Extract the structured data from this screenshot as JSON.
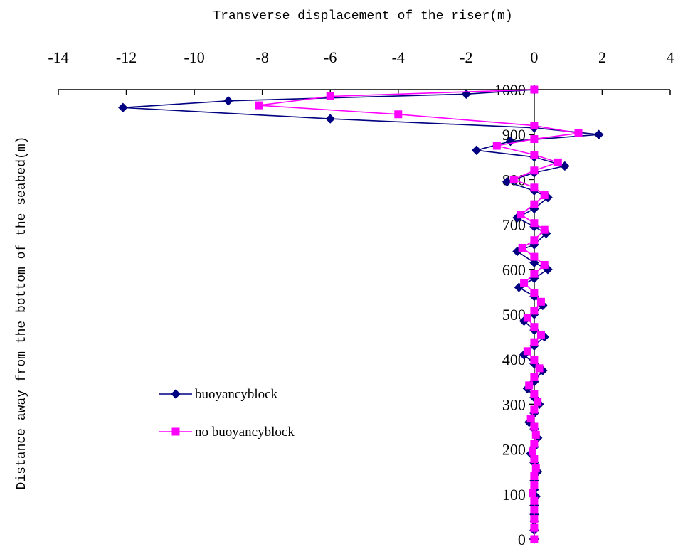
{
  "chart_data": {
    "type": "line",
    "xlabel": "Transverse displacement of the riser(m)",
    "ylabel": "Distance away from the bottom of the seabed(m)",
    "xlim": [
      -14,
      4
    ],
    "ylim": [
      0,
      1000
    ],
    "x_ticks": [
      "-14",
      "-12",
      "-10",
      "-8",
      "-6",
      "-4",
      "-2",
      "0",
      "2",
      "4"
    ],
    "y_ticks": [
      "0",
      "100",
      "200",
      "300",
      "400",
      "500",
      "600",
      "700",
      "800",
      "900",
      "1000"
    ],
    "x_axis_position": "top",
    "grid": false,
    "legend_position": "left-middle",
    "series": [
      {
        "name": "buoyancyblock",
        "color": "#000080",
        "marker": "diamond",
        "points": [
          [
            0,
            1000
          ],
          [
            -2,
            990
          ],
          [
            -9,
            975
          ],
          [
            -12.1,
            960
          ],
          [
            -6,
            935
          ],
          [
            0,
            915
          ],
          [
            1.9,
            900
          ],
          [
            -0.7,
            885
          ],
          [
            -1.7,
            865
          ],
          [
            0,
            850
          ],
          [
            0.9,
            830
          ],
          [
            0,
            815
          ],
          [
            -0.8,
            795
          ],
          [
            0,
            775
          ],
          [
            0.4,
            760
          ],
          [
            0,
            735
          ],
          [
            -0.5,
            715
          ],
          [
            0,
            695
          ],
          [
            0.35,
            680
          ],
          [
            0,
            655
          ],
          [
            -0.5,
            640
          ],
          [
            0,
            615
          ],
          [
            0.4,
            600
          ],
          [
            0,
            580
          ],
          [
            -0.45,
            560
          ],
          [
            0,
            540
          ],
          [
            0.25,
            520
          ],
          [
            0,
            500
          ],
          [
            -0.3,
            485
          ],
          [
            0,
            465
          ],
          [
            0.3,
            450
          ],
          [
            0,
            430
          ],
          [
            -0.3,
            410
          ],
          [
            0,
            390
          ],
          [
            0.25,
            375
          ],
          [
            0,
            350
          ],
          [
            -0.2,
            335
          ],
          [
            0,
            315
          ],
          [
            0.15,
            300
          ],
          [
            0,
            280
          ],
          [
            -0.15,
            260
          ],
          [
            0,
            245
          ],
          [
            0.1,
            225
          ],
          [
            0,
            205
          ],
          [
            -0.1,
            190
          ],
          [
            0,
            170
          ],
          [
            0.1,
            150
          ],
          [
            0,
            130
          ],
          [
            0,
            110
          ],
          [
            0.05,
            95
          ],
          [
            0,
            75
          ],
          [
            0,
            55
          ],
          [
            0,
            40
          ],
          [
            0,
            20
          ],
          [
            0,
            0
          ]
        ]
      },
      {
        "name": "no buoyancyblock",
        "color": "#ff00ff",
        "marker": "square",
        "points": [
          [
            0,
            1000
          ],
          [
            -6,
            985
          ],
          [
            -8.1,
            965
          ],
          [
            -4,
            945
          ],
          [
            0,
            920
          ],
          [
            1.3,
            903
          ],
          [
            0,
            890
          ],
          [
            -1.1,
            875
          ],
          [
            0,
            855
          ],
          [
            0.7,
            838
          ],
          [
            0,
            820
          ],
          [
            -0.6,
            800
          ],
          [
            0,
            782
          ],
          [
            0.3,
            765
          ],
          [
            0,
            745
          ],
          [
            -0.4,
            722
          ],
          [
            0,
            703
          ],
          [
            0.3,
            688
          ],
          [
            0,
            665
          ],
          [
            -0.35,
            648
          ],
          [
            0,
            628
          ],
          [
            0.3,
            610
          ],
          [
            0,
            590
          ],
          [
            -0.3,
            570
          ],
          [
            0,
            548
          ],
          [
            0.2,
            528
          ],
          [
            0,
            508
          ],
          [
            -0.2,
            492
          ],
          [
            0,
            472
          ],
          [
            0.2,
            455
          ],
          [
            0,
            438
          ],
          [
            -0.2,
            418
          ],
          [
            0,
            398
          ],
          [
            0.15,
            380
          ],
          [
            0,
            360
          ],
          [
            -0.15,
            342
          ],
          [
            0,
            322
          ],
          [
            0.1,
            305
          ],
          [
            0,
            288
          ],
          [
            -0.1,
            268
          ],
          [
            0,
            250
          ],
          [
            0.05,
            232
          ],
          [
            0,
            212
          ],
          [
            -0.05,
            195
          ],
          [
            0,
            178
          ],
          [
            0.05,
            158
          ],
          [
            0,
            140
          ],
          [
            0,
            120
          ],
          [
            -0.05,
            102
          ],
          [
            0,
            85
          ],
          [
            0,
            65
          ],
          [
            0,
            45
          ],
          [
            0,
            25
          ],
          [
            0,
            0
          ]
        ]
      }
    ]
  }
}
